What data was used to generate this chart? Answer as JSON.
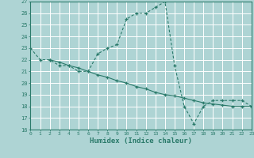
{
  "line1_x": [
    0,
    1,
    2,
    3,
    4,
    5,
    6,
    7,
    8,
    9,
    10,
    11,
    12,
    13,
    14,
    15,
    16,
    17,
    18,
    19,
    20,
    21,
    22,
    23
  ],
  "line1_y": [
    23,
    22,
    22,
    21.5,
    21.5,
    21,
    21,
    22.5,
    23,
    23.3,
    25.5,
    26,
    26,
    26.5,
    27,
    21.5,
    18,
    16.5,
    18,
    18.5,
    18.5,
    18.5,
    18.5,
    18
  ],
  "line2_x": [
    2,
    3,
    4,
    5,
    6,
    7,
    8,
    9,
    10,
    11,
    12,
    13,
    14,
    15,
    16,
    17,
    18,
    19,
    20,
    21,
    22,
    23
  ],
  "line2_y": [
    22,
    21.8,
    21.5,
    21.3,
    21.0,
    20.7,
    20.5,
    20.2,
    20.0,
    19.7,
    19.5,
    19.2,
    19.0,
    18.9,
    18.7,
    18.5,
    18.3,
    18.2,
    18.1,
    18.0,
    18.0,
    18.0
  ],
  "line_color": "#2a7a6a",
  "bg_color": "#aed4d4",
  "grid_color": "#ffffff",
  "xlabel": "Humidex (Indice chaleur)",
  "xlim": [
    0,
    23
  ],
  "ylim": [
    16,
    27
  ],
  "yticks": [
    16,
    17,
    18,
    19,
    20,
    21,
    22,
    23,
    24,
    25,
    26,
    27
  ],
  "xticks": [
    0,
    1,
    2,
    3,
    4,
    5,
    6,
    7,
    8,
    9,
    10,
    11,
    12,
    13,
    14,
    15,
    16,
    17,
    18,
    19,
    20,
    21,
    22,
    23
  ]
}
